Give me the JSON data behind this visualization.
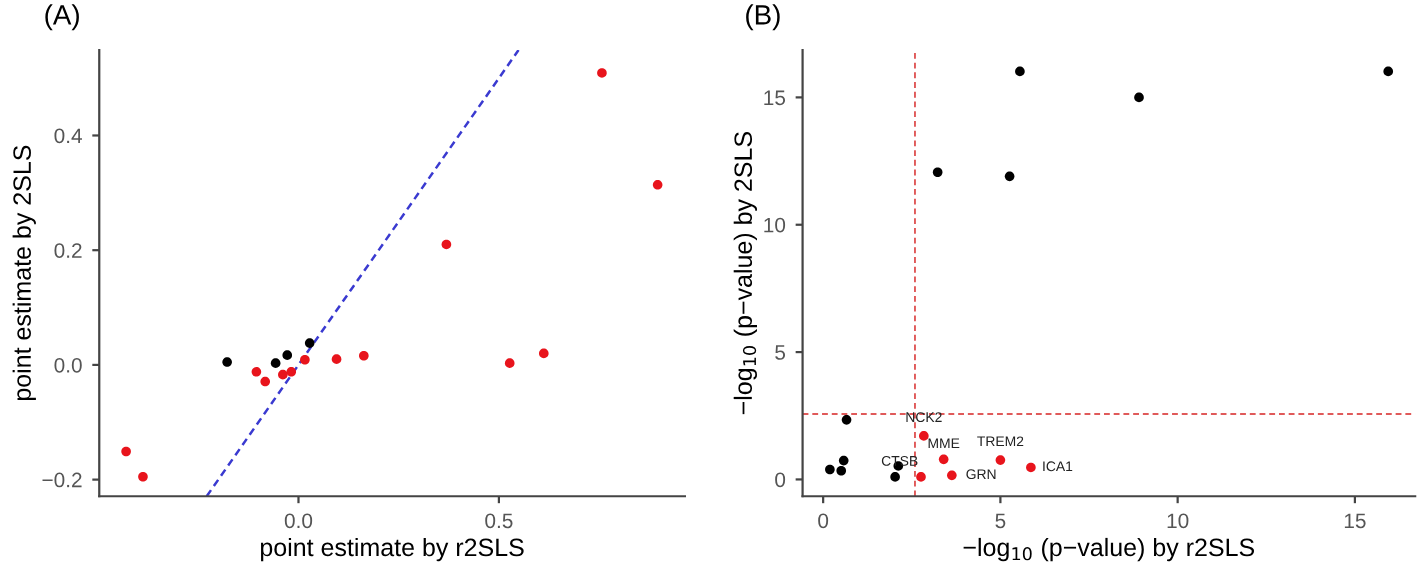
{
  "chart_data": [
    {
      "type": "scatter",
      "title": "(A)",
      "xlabel": "point estimate by r2SLS",
      "ylabel": "point estimate by 2SLS",
      "xlim": [
        -0.497,
        0.964
      ],
      "ylim": [
        -0.229,
        0.549
      ],
      "xticks": [
        {
          "value": 0,
          "label": "0.0"
        },
        {
          "value": 0.5,
          "label": "0.5"
        }
      ],
      "yticks": [
        {
          "value": -0.2,
          "label": "−0.2"
        },
        {
          "value": 0,
          "label": "0.0"
        },
        {
          "value": 0.2,
          "label": "0.2"
        },
        {
          "value": 0.4,
          "label": "0.4"
        }
      ],
      "grid": false,
      "legend": false,
      "marker": "circle",
      "series": [
        {
          "type": "line",
          "color": "#3a3ad0",
          "line_style": "dashed",
          "marker": "none",
          "x": [
            -0.229,
            0.549
          ],
          "values": [
            -0.229,
            0.549
          ]
        },
        {
          "color": "#000000",
          "x": [
            -0.178,
            -0.057,
            -0.028,
            0.028
          ],
          "values": [
            0.005,
            0.003,
            0.017,
            0.038
          ]
        },
        {
          "color": "#e8141c",
          "x": [
            -0.43,
            -0.388,
            -0.105,
            -0.083,
            -0.039,
            -0.018,
            0.016,
            0.095,
            0.163,
            0.369,
            0.527,
            0.612,
            0.757,
            0.896
          ],
          "values": [
            -0.151,
            -0.195,
            -0.012,
            -0.029,
            -0.017,
            -0.012,
            0.009,
            0.01,
            0.016,
            0.21,
            0.003,
            0.02,
            0.509,
            0.314
          ]
        }
      ]
    },
    {
      "type": "scatter",
      "title": "(B)",
      "xlabel": "−log$_{10}$ (p−value) by r2SLS",
      "ylabel": "−log$_{10}$ (p−value) by 2SLS",
      "xlim": [
        -0.58,
        16.7
      ],
      "ylim": [
        -0.66,
        16.86
      ],
      "xticks": [
        0,
        5,
        10,
        15
      ],
      "yticks": [
        0,
        5,
        10,
        15
      ],
      "grid": false,
      "legend": false,
      "marker": "circle",
      "ref_lines": [
        {
          "axis": "x",
          "value": 2.59,
          "color": "#e05a5a",
          "line_style": "dashed"
        },
        {
          "axis": "y",
          "value": 2.57,
          "color": "#e05a5a",
          "line_style": "dashed"
        }
      ],
      "series": [
        {
          "color": "#000000",
          "x": [
            0.19,
            0.51,
            0.58,
            0.66,
            2.03,
            2.12,
            3.23,
            5.26,
            5.55,
            8.91,
            15.94
          ],
          "values": [
            0.39,
            0.34,
            0.74,
            2.34,
            0.1,
            0.53,
            12.06,
            11.9,
            16.02,
            15.0,
            16.02
          ]
        },
        {
          "color": "#e8141c",
          "x": [
            2.84,
            3.4,
            5.0,
            5.86,
            2.76,
            3.63
          ],
          "values": [
            1.71,
            0.79,
            0.76,
            0.47,
            0.1,
            0.16
          ]
        }
      ],
      "annotations": [
        {
          "text": "NCK2",
          "x": 2.84,
          "y": 1.71
        },
        {
          "text": "MME",
          "x": 3.4,
          "y": 0.79
        },
        {
          "text": "TREM2",
          "x": 5.0,
          "y": 0.76
        },
        {
          "text": "ICA1",
          "x": 5.86,
          "y": 0.47
        },
        {
          "text": "CTSB",
          "x": 2.76,
          "y": 0.1
        },
        {
          "text": "GRN",
          "x": 3.63,
          "y": 0.16
        }
      ]
    }
  ]
}
